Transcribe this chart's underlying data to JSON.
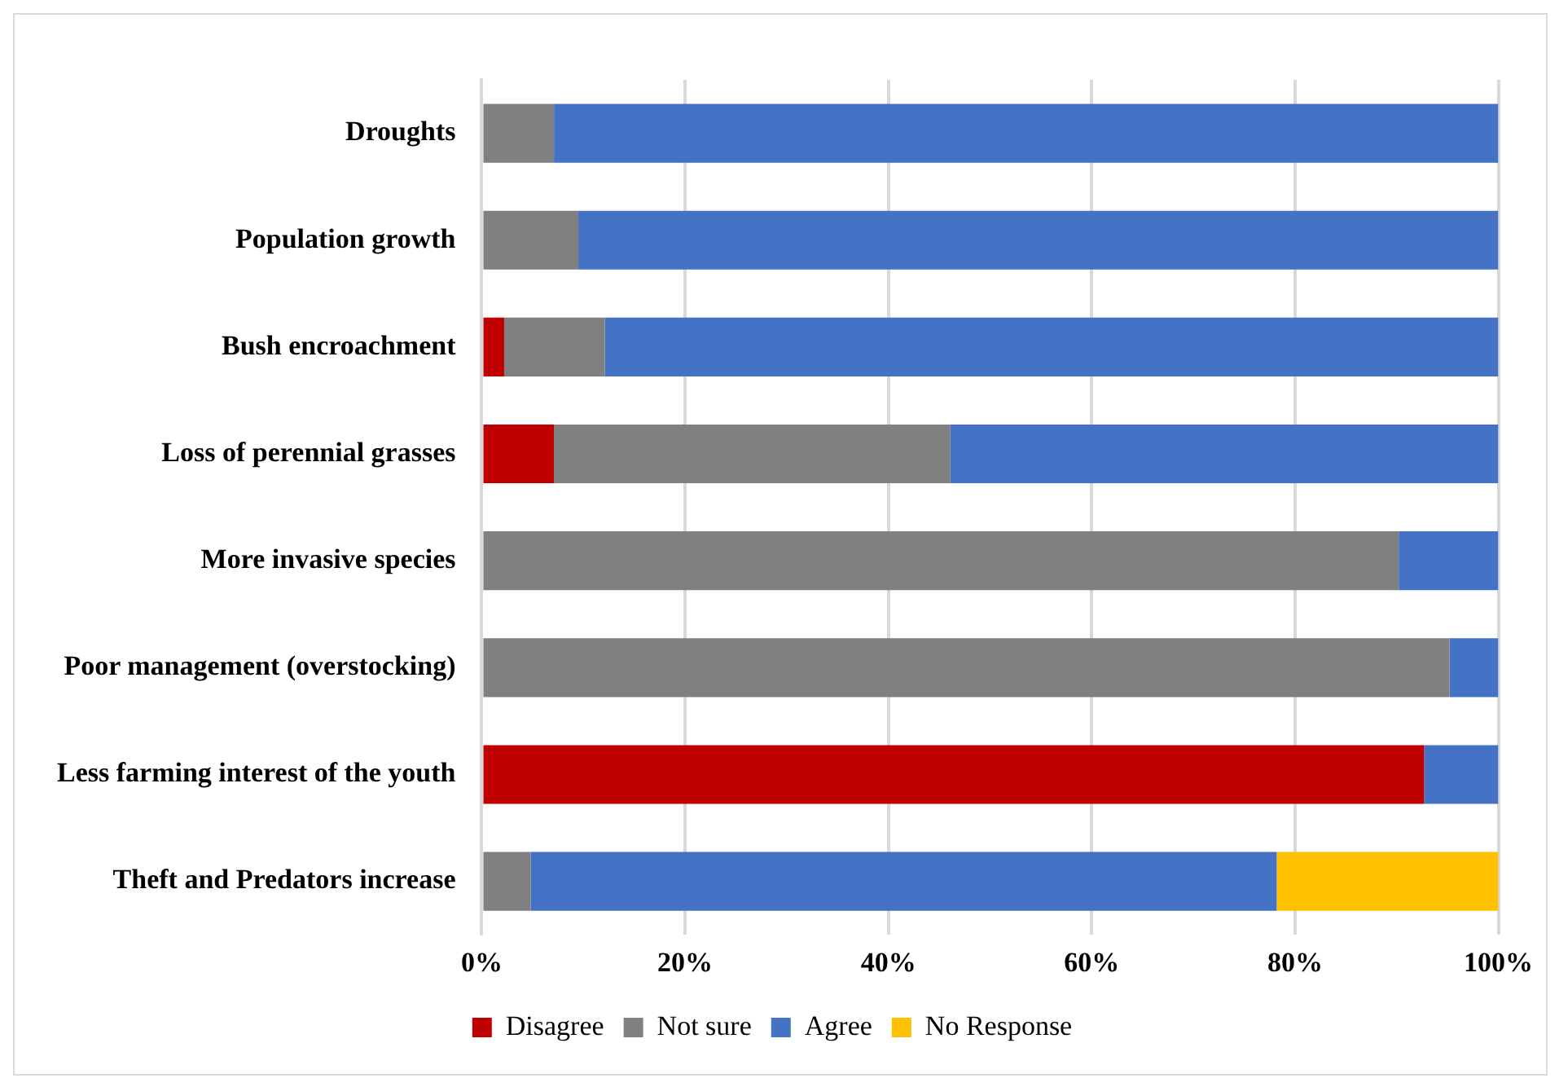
{
  "chart_data": {
    "type": "bar",
    "orientation": "horizontal",
    "stacked": true,
    "categories": [
      "Droughts",
      "Population growth",
      "Bush encroachment",
      "Loss of perennial grasses",
      "More invasive species",
      "Poor management (overstocking)",
      "Less farming interest of the youth",
      "Theft and Predators increase"
    ],
    "series": [
      {
        "name": "Disagree",
        "color": "#c00000",
        "values": [
          0,
          0,
          2.2,
          7.1,
          0,
          0,
          92.7,
          0
        ]
      },
      {
        "name": "Not sure",
        "color": "#808080",
        "values": [
          7.1,
          9.5,
          9.9,
          39.0,
          90.2,
          95.2,
          0,
          4.8
        ]
      },
      {
        "name": "Agree",
        "color": "#4472c4",
        "values": [
          92.9,
          90.5,
          87.9,
          53.9,
          9.8,
          4.8,
          7.3,
          73.4
        ]
      },
      {
        "name": "No Response",
        "color": "#ffc000",
        "values": [
          0,
          0,
          0,
          0,
          0,
          0,
          0,
          21.8
        ]
      }
    ],
    "xlim": [
      0,
      100
    ],
    "xticks": [
      {
        "value": 0,
        "label": "0%"
      },
      {
        "value": 20,
        "label": "20%"
      },
      {
        "value": 40,
        "label": "40%"
      },
      {
        "value": 60,
        "label": "60%"
      },
      {
        "value": 80,
        "label": "80%"
      },
      {
        "value": 100,
        "label": "100%"
      }
    ],
    "grid": "x",
    "legend": "bottom"
  }
}
